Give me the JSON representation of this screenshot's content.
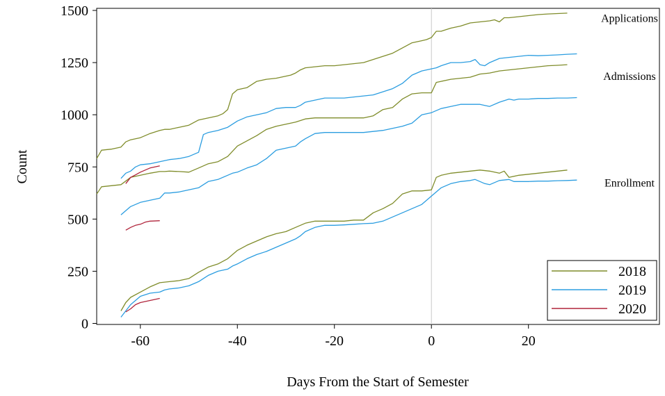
{
  "chart_data": {
    "type": "line",
    "title": "",
    "xlabel": "Days From the Start of Semester",
    "ylabel": "Count",
    "xlim": [
      -69,
      47
    ],
    "ylim": [
      -5,
      1510
    ],
    "x_ticks": [
      -60,
      -40,
      -20,
      0,
      20
    ],
    "y_ticks": [
      0,
      250,
      500,
      750,
      1000,
      1250,
      1500
    ],
    "reference_line_x": 0,
    "grid": false,
    "legend_position": "bottom-right",
    "annotations": [
      {
        "text": "Applications",
        "near_series": "2018 Applications"
      },
      {
        "text": "Admissions",
        "near_series": "2018 Admissions"
      },
      {
        "text": "Enrollment",
        "near_series": "2018 Enrollment"
      }
    ],
    "legend": [
      {
        "label": "2018",
        "color": "#7f8c2a"
      },
      {
        "label": "2019",
        "color": "#2b9de0"
      },
      {
        "label": "2020",
        "color": "#b0233a"
      }
    ],
    "series": [
      {
        "year": "2018",
        "metric": "Applications",
        "color": "#7f8c2a",
        "x": [
          -69,
          -68,
          -66,
          -64,
          -63,
          -62,
          -60,
          -58,
          -56,
          -55,
          -54,
          -52,
          -50,
          -48,
          -46,
          -44,
          -43,
          -42,
          -41,
          -40,
          -39,
          -38,
          -37,
          -36,
          -35,
          -34,
          -32,
          -30,
          -29,
          -28,
          -27,
          -26,
          -24,
          -22,
          -20,
          -18,
          -16,
          -14,
          -12,
          -10,
          -8,
          -6,
          -4,
          -2,
          -1,
          0,
          1,
          2,
          4,
          6,
          8,
          10,
          12,
          13,
          14,
          15,
          16,
          18,
          20,
          22,
          24,
          26,
          28
        ],
        "y": [
          790,
          830,
          835,
          845,
          870,
          880,
          890,
          910,
          925,
          930,
          930,
          940,
          950,
          975,
          985,
          995,
          1005,
          1025,
          1100,
          1120,
          1125,
          1130,
          1145,
          1160,
          1165,
          1170,
          1175,
          1185,
          1190,
          1200,
          1215,
          1225,
          1230,
          1235,
          1235,
          1240,
          1245,
          1250,
          1265,
          1280,
          1295,
          1320,
          1345,
          1355,
          1360,
          1370,
          1400,
          1400,
          1415,
          1425,
          1440,
          1445,
          1450,
          1455,
          1445,
          1465,
          1465,
          1470,
          1475,
          1480,
          1483,
          1485,
          1487
        ]
      },
      {
        "year": "2018",
        "metric": "Admissions",
        "color": "#7f8c2a",
        "x": [
          -69,
          -68,
          -66,
          -64,
          -62,
          -60,
          -58,
          -56,
          -55,
          -54,
          -52,
          -50,
          -48,
          -46,
          -44,
          -42,
          -40,
          -38,
          -36,
          -34,
          -32,
          -30,
          -28,
          -26,
          -24,
          -20,
          -16,
          -14,
          -12,
          -10,
          -8,
          -6,
          -4,
          -2,
          0,
          1,
          2,
          4,
          6,
          8,
          10,
          12,
          14,
          16,
          18,
          20,
          22,
          24,
          26,
          28
        ],
        "y": [
          620,
          655,
          660,
          665,
          700,
          710,
          720,
          728,
          728,
          730,
          728,
          725,
          745,
          765,
          775,
          800,
          850,
          875,
          900,
          930,
          945,
          955,
          965,
          980,
          985,
          985,
          985,
          985,
          995,
          1025,
          1035,
          1075,
          1100,
          1105,
          1105,
          1155,
          1160,
          1170,
          1175,
          1180,
          1195,
          1200,
          1210,
          1215,
          1220,
          1225,
          1230,
          1235,
          1237,
          1240
        ]
      },
      {
        "year": "2018",
        "metric": "Enrollment",
        "color": "#7f8c2a",
        "x": [
          -64,
          -63,
          -62,
          -60,
          -58,
          -56,
          -54,
          -52,
          -50,
          -48,
          -46,
          -44,
          -42,
          -40,
          -38,
          -36,
          -34,
          -32,
          -30,
          -28,
          -26,
          -24,
          -22,
          -20,
          -18,
          -16,
          -14,
          -12,
          -10,
          -8,
          -6,
          -4,
          -2,
          0,
          1,
          2,
          4,
          6,
          8,
          10,
          12,
          14,
          15,
          16,
          18,
          20,
          22,
          24,
          26,
          28
        ],
        "y": [
          60,
          100,
          125,
          150,
          175,
          195,
          200,
          205,
          215,
          245,
          270,
          285,
          310,
          350,
          375,
          395,
          415,
          430,
          440,
          460,
          480,
          490,
          490,
          490,
          490,
          495,
          495,
          530,
          550,
          575,
          620,
          635,
          635,
          640,
          700,
          710,
          720,
          725,
          730,
          735,
          730,
          720,
          730,
          700,
          710,
          715,
          720,
          725,
          730,
          735
        ]
      },
      {
        "year": "2019",
        "metric": "Applications",
        "color": "#2b9de0",
        "x": [
          -64,
          -63,
          -62,
          -61,
          -60,
          -58,
          -56,
          -55,
          -54,
          -52,
          -50,
          -48,
          -47,
          -46,
          -44,
          -42,
          -41,
          -40,
          -38,
          -36,
          -35,
          -34,
          -32,
          -30,
          -28,
          -27,
          -26,
          -24,
          -22,
          -20,
          -18,
          -16,
          -14,
          -12,
          -10,
          -8,
          -6,
          -4,
          -2,
          0,
          1,
          2,
          4,
          6,
          8,
          9,
          10,
          11,
          12,
          14,
          16,
          18,
          20,
          22,
          24,
          26,
          28,
          30
        ],
        "y": [
          695,
          720,
          730,
          750,
          760,
          765,
          775,
          780,
          785,
          790,
          800,
          820,
          905,
          915,
          925,
          940,
          955,
          970,
          990,
          1000,
          1005,
          1010,
          1030,
          1035,
          1035,
          1045,
          1060,
          1070,
          1080,
          1080,
          1080,
          1085,
          1090,
          1095,
          1110,
          1125,
          1150,
          1190,
          1210,
          1220,
          1225,
          1235,
          1250,
          1250,
          1255,
          1265,
          1240,
          1235,
          1250,
          1270,
          1275,
          1280,
          1285,
          1283,
          1285,
          1287,
          1290,
          1292
        ]
      },
      {
        "year": "2019",
        "metric": "Admissions",
        "color": "#2b9de0",
        "x": [
          -64,
          -63,
          -62,
          -61,
          -60,
          -58,
          -56,
          -55,
          -54,
          -52,
          -50,
          -48,
          -47,
          -46,
          -44,
          -42,
          -41,
          -40,
          -38,
          -36,
          -34,
          -32,
          -30,
          -28,
          -27,
          -26,
          -24,
          -22,
          -20,
          -18,
          -16,
          -14,
          -12,
          -10,
          -8,
          -6,
          -4,
          -2,
          0,
          1,
          2,
          4,
          6,
          8,
          9,
          10,
          11,
          12,
          14,
          16,
          17,
          18,
          20,
          22,
          24,
          26,
          28,
          30
        ],
        "y": [
          520,
          540,
          560,
          570,
          580,
          590,
          600,
          625,
          625,
          630,
          640,
          650,
          665,
          680,
          690,
          710,
          720,
          725,
          745,
          760,
          790,
          830,
          840,
          850,
          870,
          885,
          910,
          915,
          915,
          915,
          915,
          915,
          920,
          925,
          935,
          945,
          960,
          1000,
          1010,
          1020,
          1030,
          1040,
          1050,
          1050,
          1050,
          1050,
          1045,
          1040,
          1060,
          1075,
          1070,
          1075,
          1075,
          1078,
          1078,
          1080,
          1080,
          1082
        ]
      },
      {
        "year": "2019",
        "metric": "Enrollment",
        "color": "#2b9de0",
        "x": [
          -64,
          -63,
          -62,
          -61,
          -60,
          -58,
          -56,
          -55,
          -54,
          -52,
          -50,
          -48,
          -47,
          -46,
          -44,
          -42,
          -41,
          -40,
          -38,
          -36,
          -34,
          -32,
          -30,
          -28,
          -27,
          -26,
          -24,
          -22,
          -20,
          -18,
          -16,
          -14,
          -12,
          -10,
          -8,
          -6,
          -4,
          -2,
          0,
          1,
          2,
          4,
          6,
          8,
          9,
          10,
          11,
          12,
          14,
          16,
          17,
          18,
          20,
          22,
          24,
          26,
          28,
          30
        ],
        "y": [
          30,
          60,
          90,
          110,
          130,
          145,
          150,
          160,
          165,
          170,
          180,
          200,
          215,
          230,
          250,
          260,
          275,
          285,
          310,
          330,
          345,
          365,
          385,
          405,
          420,
          440,
          460,
          470,
          470,
          472,
          475,
          478,
          480,
          490,
          510,
          530,
          550,
          570,
          610,
          630,
          650,
          670,
          680,
          685,
          690,
          680,
          670,
          665,
          685,
          690,
          680,
          680,
          680,
          682,
          682,
          684,
          685,
          687
        ]
      },
      {
        "year": "2020",
        "metric": "Applications",
        "color": "#b0233a",
        "x": [
          -63,
          -62,
          -61,
          -60,
          -58,
          -56
        ],
        "y": [
          670,
          700,
          712,
          725,
          745,
          755
        ]
      },
      {
        "year": "2020",
        "metric": "Admissions",
        "color": "#b0233a",
        "x": [
          -63,
          -62,
          -61,
          -60,
          -59,
          -58,
          -56
        ],
        "y": [
          447,
          460,
          470,
          475,
          485,
          490,
          492
        ]
      },
      {
        "year": "2020",
        "metric": "Enrollment",
        "color": "#b0233a",
        "x": [
          -63,
          -62,
          -61,
          -60,
          -58,
          -56
        ],
        "y": [
          55,
          70,
          90,
          100,
          110,
          120
        ]
      }
    ]
  }
}
